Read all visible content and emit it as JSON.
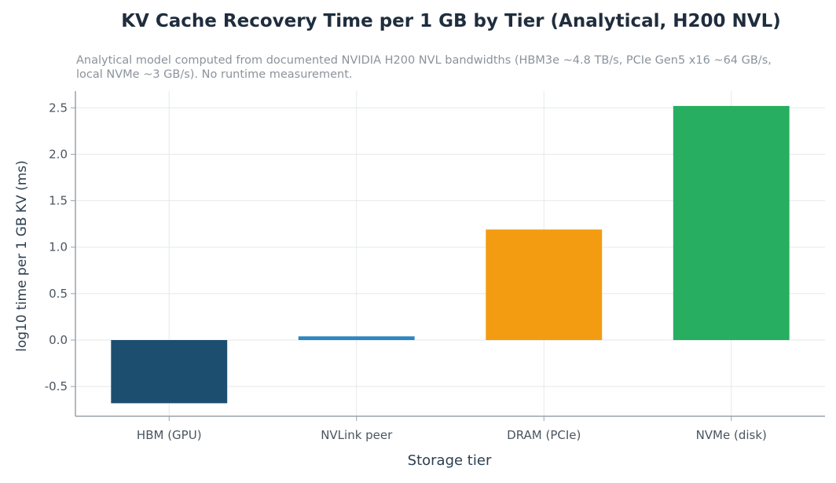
{
  "chart_data": {
    "type": "bar",
    "title": "KV Cache Recovery Time per 1 GB by Tier (Analytical, H200 NVL)",
    "subtitle": "Analytical model computed from documented NVIDIA H200 NVL bandwidths (HBM3e ~4.8 TB/s, PCIe Gen5 x16 ~64 GB/s, local NVMe ~3 GB/s). No runtime measurement.",
    "xlabel": "Storage tier",
    "ylabel": "log10 time per 1 GB KV (ms)",
    "categories": [
      "HBM (GPU)",
      "NVLink peer",
      "DRAM (PCIe)",
      "NVMe (disk)"
    ],
    "values": [
      -0.68,
      0.04,
      1.19,
      2.52
    ],
    "colors": [
      "#1c4e70",
      "#2e86c1",
      "#f39c12",
      "#27ae60"
    ],
    "ylim": [
      -0.82,
      2.68
    ],
    "yticks": [
      -0.5,
      0.0,
      0.5,
      1.0,
      1.5,
      2.0,
      2.5
    ],
    "ytick_labels": [
      "-0.5",
      "0.0",
      "0.5",
      "1.0",
      "1.5",
      "2.0",
      "2.5"
    ],
    "grid": true,
    "legend": "none"
  }
}
